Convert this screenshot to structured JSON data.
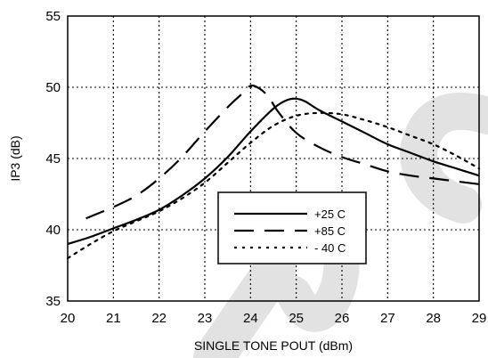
{
  "chart_data": {
    "type": "line",
    "title": "",
    "xlabel": "SINGLE TONE POUT (dBm)",
    "ylabel": "IP3 (dB)",
    "xlim": [
      20,
      29
    ],
    "ylim": [
      35,
      55
    ],
    "xticks": [
      "20",
      "21",
      "22",
      "23",
      "24",
      "25",
      "26",
      "27",
      "28",
      "29"
    ],
    "yticks": [
      "35",
      "40",
      "45",
      "50",
      "55"
    ],
    "grid": true,
    "legend_position": "center-right",
    "series": [
      {
        "name": "+25 C",
        "style": "solid",
        "color": "#000000",
        "x": [
          20.0,
          20.5,
          21.0,
          21.5,
          22.0,
          22.5,
          23.0,
          23.5,
          24.0,
          24.5,
          24.8,
          25.0,
          25.2,
          25.5,
          26.0,
          26.5,
          27.0,
          27.5,
          28.0,
          28.5,
          29.0
        ],
        "y": [
          39.0,
          39.5,
          40.1,
          40.7,
          41.4,
          42.4,
          43.6,
          45.1,
          46.9,
          48.5,
          49.1,
          49.2,
          49.0,
          48.4,
          47.6,
          46.8,
          46.0,
          45.4,
          44.8,
          44.3,
          43.8
        ]
      },
      {
        "name": "+85 C",
        "style": "dashed",
        "color": "#000000",
        "x": [
          20.4,
          21.0,
          21.5,
          22.0,
          22.5,
          23.0,
          23.5,
          23.8,
          24.0,
          24.2,
          24.4,
          24.6,
          25.0,
          25.5,
          26.0,
          26.5,
          27.0,
          27.5,
          28.0,
          28.5,
          29.0
        ],
        "y": [
          40.8,
          41.6,
          42.4,
          43.6,
          45.1,
          46.9,
          48.6,
          49.5,
          50.1,
          49.9,
          49.3,
          48.3,
          46.8,
          45.8,
          45.1,
          44.6,
          44.1,
          43.8,
          43.6,
          43.4,
          43.2
        ]
      },
      {
        "name": "- 40 C",
        "style": "dotted",
        "color": "#000000",
        "x": [
          20.0,
          20.5,
          21.0,
          21.5,
          22.0,
          22.5,
          23.0,
          23.5,
          24.0,
          24.5,
          25.0,
          25.5,
          26.0,
          26.5,
          27.0,
          27.5,
          28.0,
          28.5,
          29.0
        ],
        "y": [
          38.0,
          39.0,
          39.9,
          40.6,
          41.3,
          42.2,
          43.3,
          44.7,
          46.1,
          47.3,
          48.0,
          48.2,
          48.1,
          47.7,
          47.2,
          46.6,
          46.0,
          45.2,
          44.3
        ]
      }
    ]
  },
  "colors": {
    "line": "#000000",
    "grid": "#000000",
    "watermark": "#e0e0e0"
  }
}
